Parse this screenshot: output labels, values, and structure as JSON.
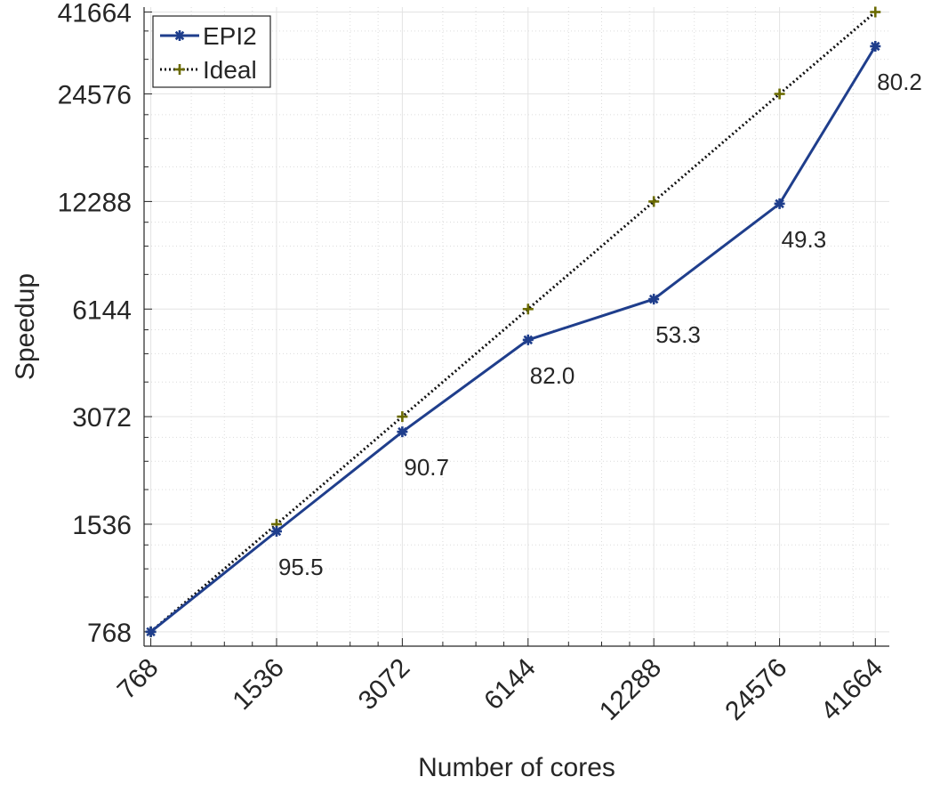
{
  "chart_data": {
    "type": "line",
    "x_scale": "log2",
    "y_scale": "log2",
    "xlabel": "Number of cores",
    "ylabel": "Speedup",
    "x_ticks": [
      "768",
      "1536",
      "3072",
      "6144",
      "12288",
      "24576",
      "41664"
    ],
    "y_ticks": [
      "768",
      "1536",
      "3072",
      "6144",
      "12288",
      "24576",
      "41664"
    ],
    "xlim": [
      740,
      45000
    ],
    "ylim": [
      700,
      43000
    ],
    "grid": true,
    "minor_grid": true,
    "legend_position": "top-left",
    "x": [
      768,
      1536,
      3072,
      6144,
      12288,
      24576,
      41664
    ],
    "series": [
      {
        "name": "EPI2",
        "values": [
          768,
          1467,
          2786,
          5038,
          6550,
          12116,
          33413
        ],
        "color": "#1f3e8c",
        "marker": "asterisk",
        "line_style": "solid",
        "labels": [
          "",
          "95.5",
          "90.7",
          "82.0",
          "53.3",
          "49.3",
          "80.2"
        ]
      },
      {
        "name": "Ideal",
        "values": [
          768,
          1536,
          3072,
          6144,
          12288,
          24576,
          41664
        ],
        "color": "#6b6b00",
        "marker": "plus",
        "line_style": "dotted"
      }
    ]
  }
}
